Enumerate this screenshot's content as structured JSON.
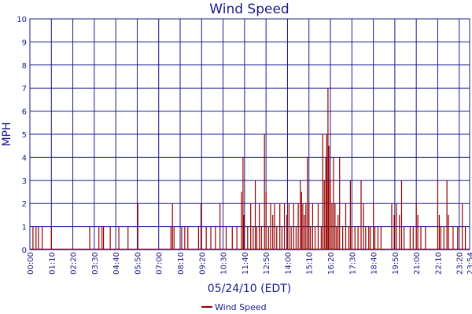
{
  "chart_data": {
    "type": "line",
    "title": "Wind Speed",
    "xlabel": "05/24/10 (EDT)",
    "ylabel": "MPH",
    "ylim": [
      0,
      10
    ],
    "yticks": [
      0,
      1,
      2,
      3,
      4,
      5,
      6,
      7,
      8,
      9,
      10
    ],
    "x_range_minutes": [
      0,
      1434
    ],
    "x_tick_labels": [
      "00:00",
      "01:10",
      "02:20",
      "03:30",
      "04:40",
      "05:50",
      "07:00",
      "08:10",
      "09:20",
      "10:30",
      "11:40",
      "12:50",
      "14:00",
      "15:10",
      "16:20",
      "17:30",
      "18:40",
      "19:50",
      "21:00",
      "22:10",
      "23:20",
      "23:54"
    ],
    "grid": true,
    "legend_position": "bottom-center",
    "colors": {
      "series": "#990000",
      "grid": "#1a1a8c",
      "text": "#1a1a8c"
    },
    "series": [
      {
        "name": "Wind Speed",
        "points": [
          [
            "00:10",
            1
          ],
          [
            "00:20",
            1
          ],
          [
            "00:28",
            1
          ],
          [
            "00:40",
            1
          ],
          [
            "01:10",
            1
          ],
          [
            "03:15",
            1
          ],
          [
            "03:45",
            1
          ],
          [
            "03:55",
            1
          ],
          [
            "04:00",
            1
          ],
          [
            "04:22",
            1
          ],
          [
            "04:50",
            1
          ],
          [
            "05:20",
            1
          ],
          [
            "05:52",
            2
          ],
          [
            "07:40",
            1
          ],
          [
            "07:45",
            2
          ],
          [
            "07:50",
            1
          ],
          [
            "08:15",
            1
          ],
          [
            "08:25",
            1
          ],
          [
            "08:35",
            1
          ],
          [
            "09:10",
            1
          ],
          [
            "09:18",
            2
          ],
          [
            "09:35",
            1
          ],
          [
            "09:50",
            1
          ],
          [
            "10:05",
            1
          ],
          [
            "10:20",
            2
          ],
          [
            "10:40",
            1
          ],
          [
            "11:00",
            1
          ],
          [
            "11:15",
            1
          ],
          [
            "11:30",
            2.5
          ],
          [
            "11:35",
            4
          ],
          [
            "11:38",
            1.5
          ],
          [
            "11:50",
            1
          ],
          [
            "12:00",
            2
          ],
          [
            "12:08",
            1
          ],
          [
            "12:15",
            3
          ],
          [
            "12:20",
            1
          ],
          [
            "12:28",
            2
          ],
          [
            "12:35",
            1
          ],
          [
            "12:45",
            5
          ],
          [
            "12:50",
            2.5
          ],
          [
            "12:58",
            1
          ],
          [
            "13:05",
            2
          ],
          [
            "13:12",
            1.5
          ],
          [
            "13:18",
            2
          ],
          [
            "13:25",
            1
          ],
          [
            "13:35",
            2
          ],
          [
            "13:42",
            1
          ],
          [
            "13:50",
            2
          ],
          [
            "13:58",
            1.5
          ],
          [
            "14:05",
            2
          ],
          [
            "14:12",
            1
          ],
          [
            "14:20",
            2
          ],
          [
            "14:28",
            1
          ],
          [
            "14:35",
            2
          ],
          [
            "14:42",
            3
          ],
          [
            "14:46",
            2.5
          ],
          [
            "14:50",
            2
          ],
          [
            "14:55",
            1.5
          ],
          [
            "15:00",
            2
          ],
          [
            "15:05",
            4
          ],
          [
            "15:10",
            2
          ],
          [
            "15:15",
            1
          ],
          [
            "15:22",
            2
          ],
          [
            "15:30",
            1
          ],
          [
            "15:40",
            2
          ],
          [
            "15:50",
            1
          ],
          [
            "15:55",
            5
          ],
          [
            "16:00",
            3
          ],
          [
            "16:05",
            4
          ],
          [
            "16:08",
            5
          ],
          [
            "16:12",
            7
          ],
          [
            "16:15",
            4.5
          ],
          [
            "16:20",
            3
          ],
          [
            "16:25",
            2
          ],
          [
            "16:30",
            4
          ],
          [
            "16:35",
            2
          ],
          [
            "16:40",
            1
          ],
          [
            "16:45",
            1.5
          ],
          [
            "16:50",
            4
          ],
          [
            "17:00",
            1
          ],
          [
            "17:10",
            2
          ],
          [
            "17:20",
            1
          ],
          [
            "17:25",
            3
          ],
          [
            "17:30",
            1
          ],
          [
            "17:40",
            1
          ],
          [
            "17:50",
            1
          ],
          [
            "18:00",
            3
          ],
          [
            "18:08",
            2
          ],
          [
            "18:15",
            1
          ],
          [
            "18:25",
            1
          ],
          [
            "18:30",
            1
          ],
          [
            "18:40",
            2
          ],
          [
            "18:45",
            1
          ],
          [
            "18:55",
            1
          ],
          [
            "19:05",
            1
          ],
          [
            "19:40",
            2
          ],
          [
            "19:48",
            1.5
          ],
          [
            "19:55",
            2
          ],
          [
            "20:05",
            1.5
          ],
          [
            "20:12",
            3
          ],
          [
            "20:20",
            1
          ],
          [
            "20:40",
            1
          ],
          [
            "20:50",
            1
          ],
          [
            "21:00",
            2
          ],
          [
            "21:05",
            1.5
          ],
          [
            "21:15",
            1
          ],
          [
            "21:30",
            1
          ],
          [
            "22:10",
            3
          ],
          [
            "22:15",
            1.5
          ],
          [
            "22:20",
            1
          ],
          [
            "22:30",
            1
          ],
          [
            "22:40",
            3
          ],
          [
            "22:45",
            1.5
          ],
          [
            "23:00",
            1
          ],
          [
            "23:15",
            1
          ],
          [
            "23:30",
            2
          ],
          [
            "23:40",
            1
          ]
        ]
      }
    ]
  }
}
